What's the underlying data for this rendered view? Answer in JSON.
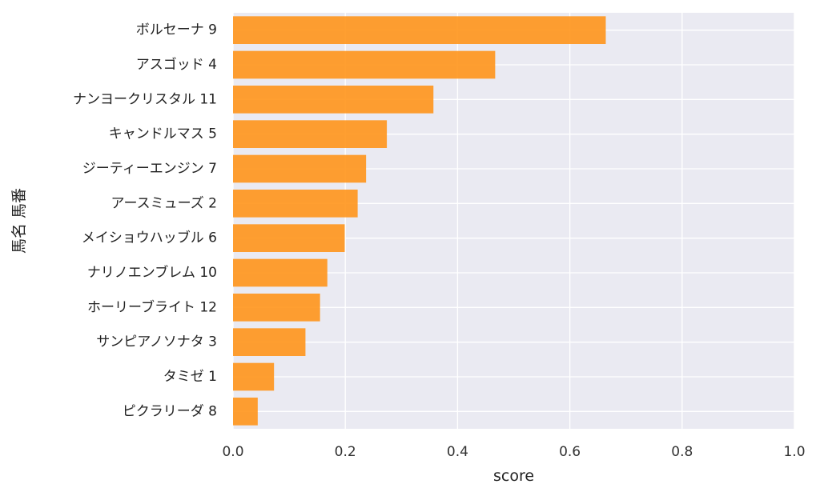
{
  "chart_data": {
    "type": "bar",
    "orientation": "horizontal",
    "categories": [
      "ボルセーナ 9",
      "アスゴッド 4",
      "ナンヨークリスタル 11",
      "キャンドルマス 5",
      "ジーティーエンジン 7",
      "アースミューズ 2",
      "メイショウハッブル 6",
      "ナリノエンブレム 10",
      "ホーリーブライト 12",
      "サンピアノソナタ 3",
      "タミゼ 1",
      "ピクラリーダ 8"
    ],
    "values": [
      0.664,
      0.467,
      0.357,
      0.274,
      0.237,
      0.222,
      0.199,
      0.168,
      0.155,
      0.129,
      0.073,
      0.044
    ],
    "xlabel": "score",
    "ylabel": "馬名 馬番",
    "xlim": [
      0,
      1.0
    ],
    "xticks": [
      "0.0",
      "0.2",
      "0.4",
      "0.6",
      "0.8",
      "1.0"
    ],
    "grid": true,
    "bar_color": "#ff9215",
    "background_color": "#eaeaf2",
    "grid_color": "#ffffff"
  }
}
